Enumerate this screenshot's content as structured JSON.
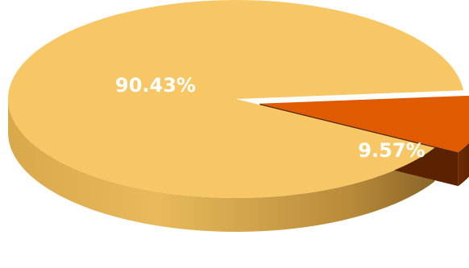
{
  "chart_data": {
    "type": "pie",
    "title": "",
    "style": "3d-exploded",
    "slices": [
      {
        "value": 90.43,
        "label": "90.43%",
        "color": "#F7C765"
      },
      {
        "value": 9.57,
        "label": "9.57%",
        "color": "#E05A00"
      }
    ]
  }
}
